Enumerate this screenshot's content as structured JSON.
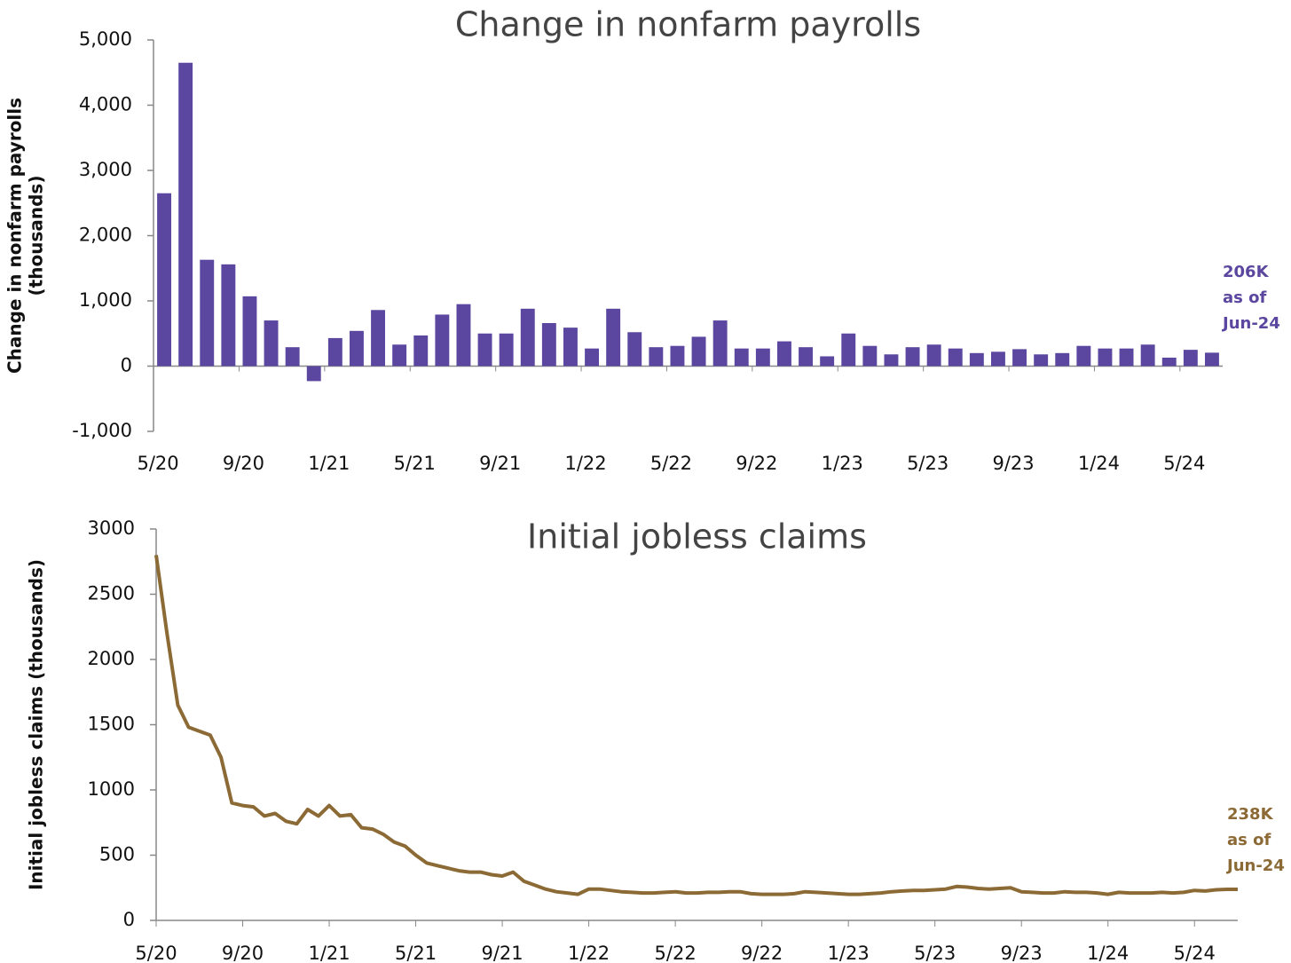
{
  "chart_data": [
    {
      "type": "bar",
      "title": "Change in nonfarm payrolls",
      "y_label": [
        "Change in nonfarm payrolls",
        "(thousands)"
      ],
      "categories": [
        "5/20",
        null,
        null,
        null,
        "9/20",
        null,
        null,
        null,
        "1/21",
        null,
        null,
        null,
        "5/21",
        null,
        null,
        null,
        "9/21",
        null,
        null,
        null,
        "1/22",
        null,
        null,
        null,
        "5/22",
        null,
        null,
        null,
        "9/22",
        null,
        null,
        null,
        "1/23",
        null,
        null,
        null,
        "5/23",
        null,
        null,
        null,
        "9/23",
        null,
        null,
        null,
        "1/24",
        null,
        null,
        null,
        "5/24",
        null
      ],
      "values": [
        2650,
        4650,
        1630,
        1560,
        1070,
        700,
        290,
        -230,
        430,
        540,
        860,
        330,
        470,
        790,
        950,
        500,
        500,
        880,
        660,
        590,
        270,
        880,
        520,
        290,
        310,
        450,
        700,
        270,
        270,
        380,
        290,
        150,
        500,
        310,
        180,
        290,
        330,
        270,
        200,
        220,
        260,
        180,
        200,
        310,
        270,
        270,
        330,
        130,
        250,
        206
      ],
      "color": "#5b479f",
      "ylim": [
        -1000,
        5000
      ],
      "yticks": [
        {
          "value": -1000,
          "label": "-1,000"
        },
        0,
        {
          "value": 1000,
          "label": "1,000"
        },
        {
          "value": 2000,
          "label": "2,000"
        },
        {
          "value": 3000,
          "label": "3,000"
        },
        {
          "value": 4000,
          "label": "4,000"
        },
        {
          "value": 5000,
          "label": "5,000"
        }
      ],
      "annotation": [
        "206K",
        "as of",
        "Jun-24"
      ]
    },
    {
      "type": "line",
      "title": "Initial jobless claims",
      "y_label": [
        "Initial jobless claims (thousands)"
      ],
      "categories": [
        "5/20",
        null,
        null,
        null,
        null,
        null,
        null,
        null,
        "9/20",
        null,
        null,
        null,
        null,
        null,
        null,
        null,
        "1/21",
        null,
        null,
        null,
        null,
        null,
        null,
        null,
        "5/21",
        null,
        null,
        null,
        null,
        null,
        null,
        null,
        "9/21",
        null,
        null,
        null,
        null,
        null,
        null,
        null,
        "1/22",
        null,
        null,
        null,
        null,
        null,
        null,
        null,
        "5/22",
        null,
        null,
        null,
        null,
        null,
        null,
        null,
        "9/22",
        null,
        null,
        null,
        null,
        null,
        null,
        null,
        "1/23",
        null,
        null,
        null,
        null,
        null,
        null,
        null,
        "5/23",
        null,
        null,
        null,
        null,
        null,
        null,
        null,
        "9/23",
        null,
        null,
        null,
        null,
        null,
        null,
        null,
        "1/24",
        null,
        null,
        null,
        null,
        null,
        null,
        null,
        "5/24",
        null,
        null,
        null,
        null
      ],
      "values": [
        2800,
        2200,
        1650,
        1480,
        1450,
        1420,
        1250,
        900,
        880,
        870,
        800,
        820,
        760,
        740,
        850,
        800,
        880,
        800,
        810,
        710,
        700,
        660,
        600,
        570,
        500,
        440,
        420,
        400,
        380,
        370,
        370,
        350,
        340,
        370,
        300,
        270,
        240,
        220,
        210,
        200,
        240,
        240,
        230,
        220,
        215,
        210,
        210,
        215,
        220,
        210,
        210,
        215,
        215,
        220,
        220,
        205,
        200,
        200,
        200,
        205,
        220,
        215,
        210,
        205,
        200,
        200,
        205,
        210,
        220,
        225,
        230,
        230,
        235,
        240,
        260,
        255,
        245,
        240,
        245,
        250,
        220,
        215,
        210,
        210,
        220,
        215,
        215,
        210,
        200,
        215,
        210,
        210,
        210,
        215,
        210,
        215,
        230,
        225,
        235,
        238,
        238
      ],
      "color": "#8c6a35",
      "ylim": [
        0,
        3000
      ],
      "yticks": [
        0,
        500,
        1000,
        1500,
        2000,
        2500,
        3000
      ],
      "annotation": [
        "238K",
        "as of",
        "Jun-24"
      ]
    }
  ]
}
